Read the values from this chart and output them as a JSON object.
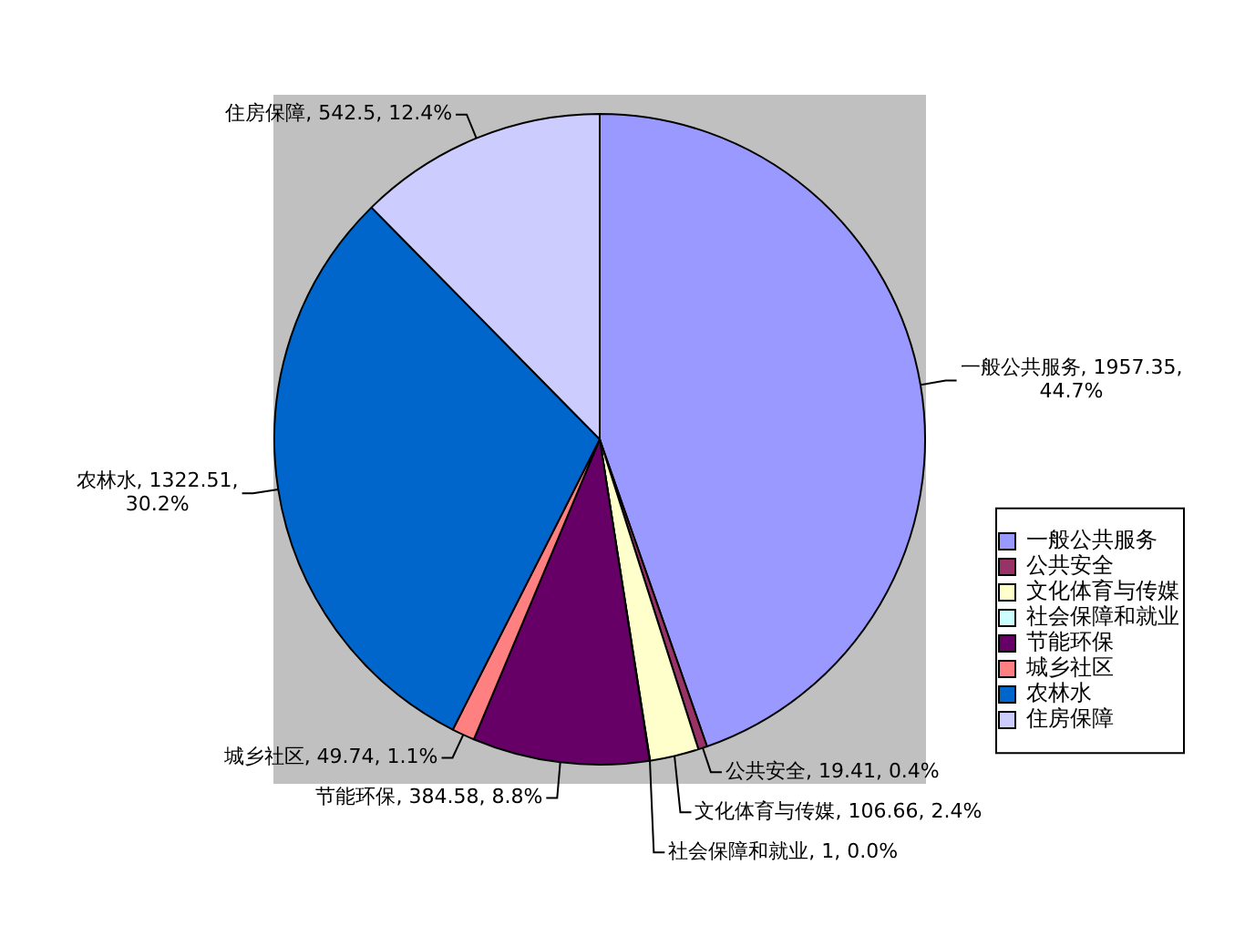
{
  "chart_data": {
    "type": "pie",
    "categories": [
      "一般公共服务",
      "公共安全",
      "文化体育与传媒",
      "社会保障和就业",
      "节能环保",
      "城乡社区",
      "农林水",
      "住房保障"
    ],
    "values": [
      1957.35,
      19.41,
      106.66,
      1,
      384.58,
      49.74,
      1322.51,
      542.5
    ],
    "colors": [
      "#9999ff",
      "#993366",
      "#ffffcc",
      "#ccffff",
      "#660066",
      "#ff8080",
      "#0066cc",
      "#ccccff"
    ],
    "value_labels": [
      "一般公共服务, 1957.35, 44.7%",
      "公共安全, 19.41, 0.4%",
      "文化体育与传媒, 106.66, 2.4%",
      "社会保障和就业, 1, 0.0%",
      "节能环保, 384.58, 8.8%",
      "城乡社区, 49.74, 1.1%",
      "农林水, 1322.51, 30.2%",
      "住房保障, 542.5, 12.4%"
    ],
    "legend": "right"
  }
}
